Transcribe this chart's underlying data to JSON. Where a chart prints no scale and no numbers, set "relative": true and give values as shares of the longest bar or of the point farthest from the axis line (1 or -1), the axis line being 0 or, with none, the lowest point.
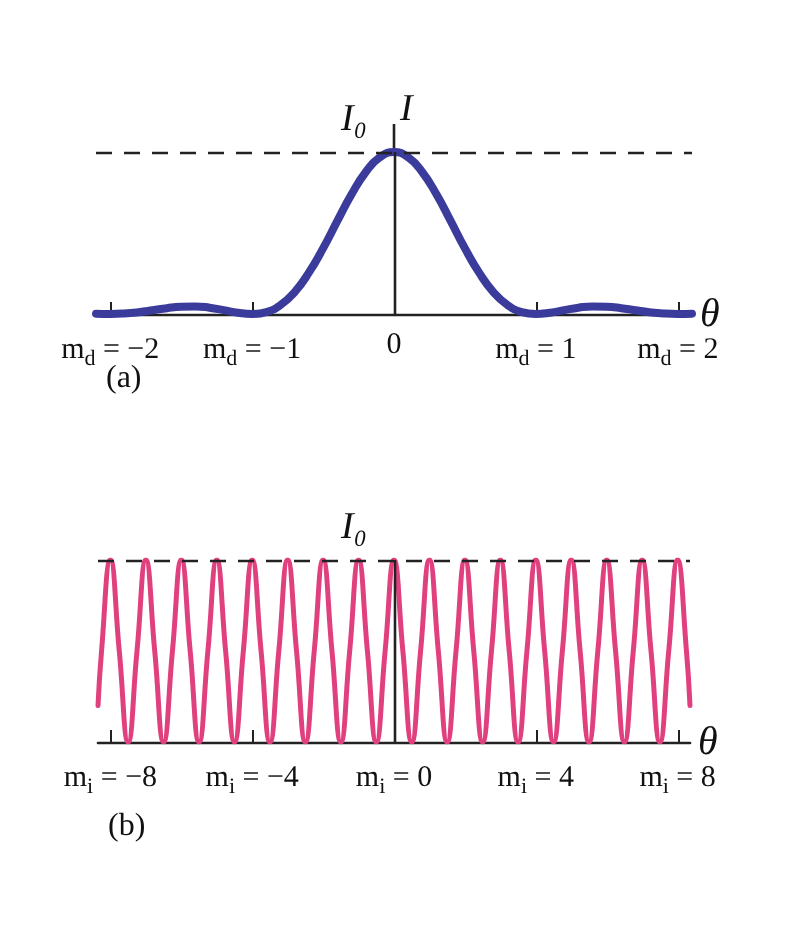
{
  "chart_data": [
    {
      "type": "line",
      "title": "(a)",
      "xlabel": "θ",
      "ylabel": "I",
      "relative": true,
      "tick_labels": "x",
      "marker": "none",
      "line_style": "solid",
      "grid": false,
      "xlim": [
        -2.1,
        2.1
      ],
      "xticks": [
        {
          "value": -2,
          "label": "m$_{d}$ = −2"
        },
        {
          "value": -1,
          "label": "m$_{d}$ = −1"
        },
        0,
        {
          "value": 1,
          "label": "m$_{d}$ = 1"
        },
        {
          "value": 2,
          "label": "m$_{d}$ = 2"
        }
      ],
      "ref_lines": [
        {
          "axis": "y",
          "value": 1,
          "label": "I₀",
          "line_style": "dashed",
          "color": "#222222"
        },
        {
          "axis": "x",
          "value": 0,
          "color": "#222222"
        }
      ],
      "series": [
        {
          "color": "#3b3b9c",
          "x": [
            -2.1,
            -2.0,
            -1.9,
            -1.8,
            -1.7,
            -1.6,
            -1.5,
            -1.4,
            -1.3,
            -1.2,
            -1.1,
            -1.0,
            -0.9,
            -0.8,
            -0.7,
            -0.6,
            -0.5,
            -0.4,
            -0.3,
            -0.2,
            -0.1,
            0,
            0.1,
            0.2,
            0.3,
            0.4,
            0.5,
            0.6,
            0.7,
            0.8,
            0.9,
            1.0,
            1.1,
            1.2,
            1.3,
            1.4,
            1.5,
            1.6,
            1.7,
            1.8,
            1.9,
            2.0,
            2.1
          ],
          "values": [
            0.002,
            0,
            0.003,
            0.011,
            0.023,
            0.036,
            0.045,
            0.047,
            0.039,
            0.024,
            0.008,
            0,
            0.012,
            0.055,
            0.135,
            0.255,
            0.405,
            0.573,
            0.737,
            0.875,
            0.967,
            1,
            0.967,
            0.875,
            0.737,
            0.573,
            0.405,
            0.255,
            0.135,
            0.055,
            0.012,
            0,
            0.008,
            0.024,
            0.039,
            0.047,
            0.045,
            0.036,
            0.023,
            0.011,
            0.003,
            0,
            0.002
          ]
        }
      ]
    },
    {
      "type": "line",
      "title": "(b)",
      "xlabel": "θ",
      "relative": true,
      "tick_labels": "x",
      "marker": "none",
      "line_style": "solid",
      "grid": false,
      "xlim": [
        -8.35,
        8.35
      ],
      "xticks": [
        {
          "value": -8,
          "label": "m$_{i}$ = −8"
        },
        {
          "value": -4,
          "label": "m$_{i}$ = −4"
        },
        {
          "value": 0,
          "label": "m$_{i}$ = 0"
        },
        {
          "value": 4,
          "label": "m$_{i}$ = 4"
        },
        {
          "value": 8,
          "label": "m$_{i}$ = 8"
        }
      ],
      "ref_lines": [
        {
          "axis": "y",
          "value": 1,
          "label": "I₀",
          "line_style": "dashed",
          "color": "#222222"
        },
        {
          "axis": "x",
          "value": 0,
          "color": "#222222"
        }
      ],
      "series": [
        {
          "color": "#e0407e",
          "x": [
            -8.35,
            -8.25,
            -8,
            -7.75,
            -7.5,
            -7.25,
            -7,
            -6.75,
            -6.5,
            -6.25,
            -6,
            -5.75,
            -5.5,
            -5.25,
            -5,
            -4.75,
            -4.5,
            -4.25,
            -4,
            -3.75,
            -3.5,
            -3.25,
            -3,
            -2.75,
            -2.5,
            -2.25,
            -2,
            -1.75,
            -1.5,
            -1.25,
            -1,
            -0.75,
            -0.5,
            -0.25,
            0,
            0.25,
            0.5,
            0.75,
            1,
            1.25,
            1.5,
            1.75,
            2,
            2.25,
            2.5,
            2.75,
            3,
            3.25,
            3.5,
            3.75,
            4,
            4.25,
            4.5,
            4.75,
            5,
            5.25,
            5.5,
            5.75,
            6,
            6.25,
            6.5,
            6.75,
            7,
            7.25,
            7.5,
            7.75,
            8,
            8.25,
            8.35
          ],
          "values": [
            0.2,
            0.5,
            1,
            0.5,
            0,
            0.5,
            1,
            0.5,
            0,
            0.5,
            1,
            0.5,
            0,
            0.5,
            1,
            0.5,
            0,
            0.5,
            1,
            0.5,
            0,
            0.5,
            1,
            0.5,
            0,
            0.5,
            1,
            0.5,
            0,
            0.5,
            1,
            0.5,
            0,
            0.5,
            1,
            0.5,
            0,
            0.5,
            1,
            0.5,
            0,
            0.5,
            1,
            0.5,
            0,
            0.5,
            1,
            0.5,
            0,
            0.5,
            1,
            0.5,
            0,
            0.5,
            1,
            0.5,
            0,
            0.5,
            1,
            0.5,
            0,
            0.5,
            1,
            0.5,
            0,
            0.5,
            1,
            0.5,
            0.2
          ]
        }
      ]
    }
  ]
}
